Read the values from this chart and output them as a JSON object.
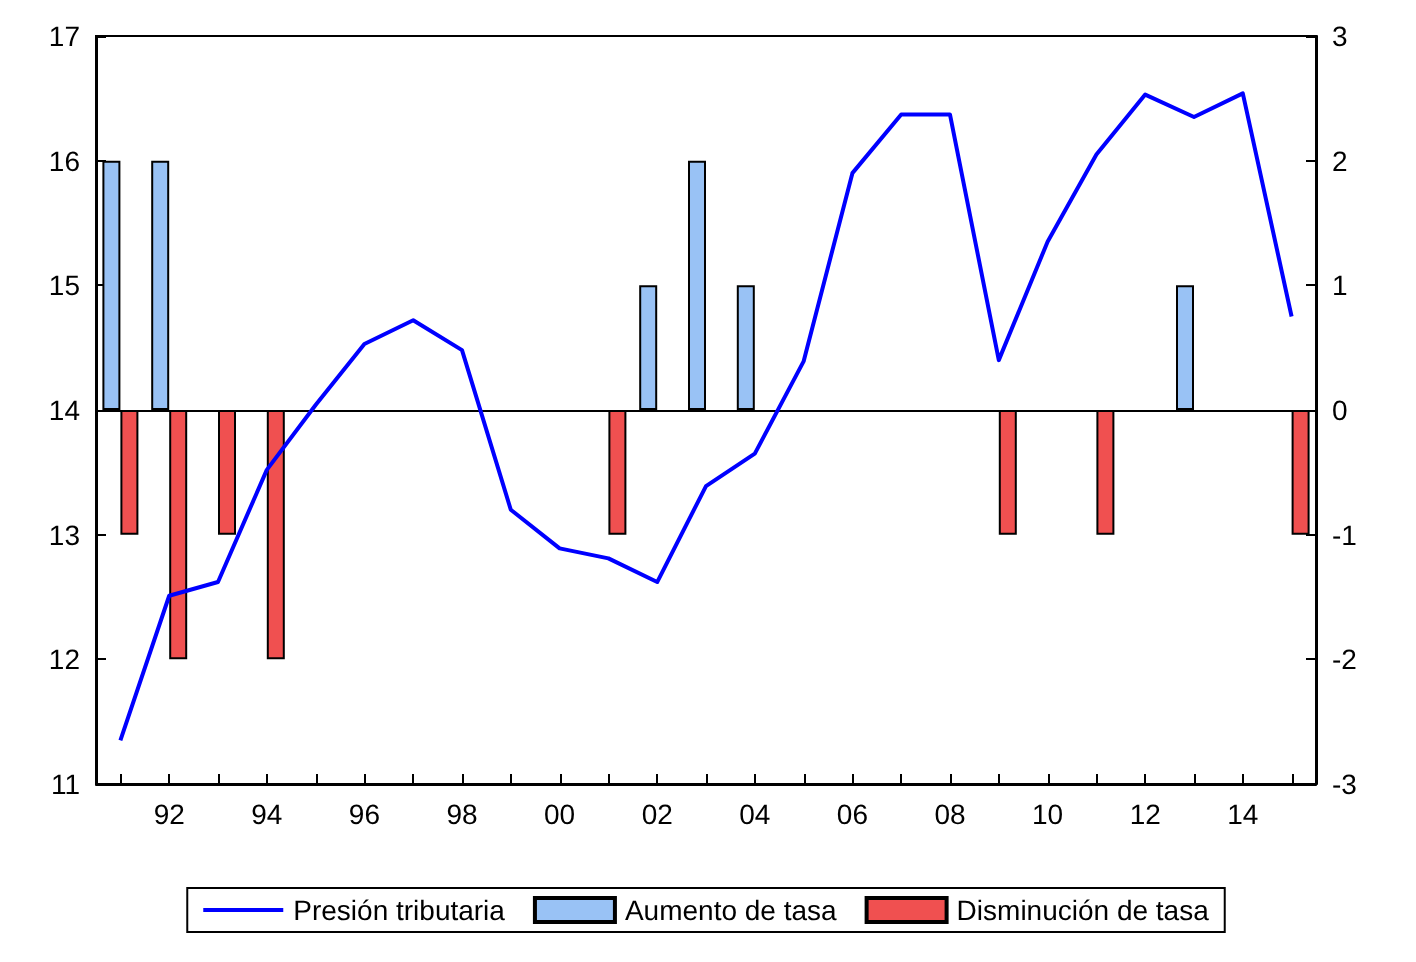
{
  "chart_data": {
    "type": "bar",
    "categories": [
      null,
      "92",
      null,
      "94",
      null,
      "96",
      null,
      "98",
      null,
      "00",
      null,
      "02",
      null,
      "04",
      null,
      "06",
      null,
      "08",
      null,
      "10",
      null,
      "12",
      null,
      "14",
      null
    ],
    "series": [
      {
        "name": "Presión tributaria",
        "type": "line",
        "color": "#0000ff",
        "values": [
          11.35,
          12.51,
          12.62,
          13.52,
          14.04,
          14.53,
          14.72,
          14.48,
          13.2,
          12.89,
          12.81,
          12.62,
          13.39,
          13.65,
          14.39,
          15.9,
          16.37,
          16.37,
          14.4,
          15.35,
          16.05,
          16.53,
          16.35,
          16.54,
          14.75
        ]
      },
      {
        "name": "Aumento de tasa",
        "axis": "y2",
        "color": "#99c2f5",
        "values": [
          2,
          2,
          null,
          null,
          null,
          null,
          null,
          null,
          null,
          null,
          null,
          1,
          2,
          1,
          null,
          null,
          null,
          null,
          null,
          null,
          null,
          null,
          1,
          null,
          null
        ]
      },
      {
        "name": "Disminución de tasa",
        "axis": "y2",
        "color": "#f05050",
        "values": [
          -1,
          -2,
          -1,
          -2,
          null,
          null,
          null,
          null,
          null,
          null,
          -1,
          null,
          null,
          null,
          null,
          null,
          null,
          null,
          -1,
          null,
          -1,
          null,
          null,
          null,
          -1
        ]
      }
    ],
    "ylim": [
      11,
      17
    ],
    "yticks": [
      11,
      12,
      13,
      14,
      15,
      16,
      17
    ],
    "y2lim": [
      -3,
      3
    ],
    "y2ticks": [
      -3,
      -2,
      -1,
      0,
      1,
      2,
      3
    ],
    "ref_lines": [
      {
        "axis": "y2",
        "value": 0,
        "color": "#000000"
      }
    ],
    "grid": false,
    "legend": "bottom",
    "marker": "none",
    "line_style": "solid"
  }
}
